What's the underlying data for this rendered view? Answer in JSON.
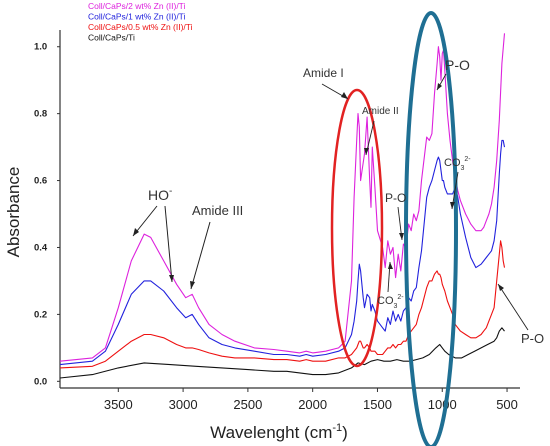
{
  "chart_data": {
    "type": "line",
    "xlabel": "Wavelenght (cm",
    "xlabel_sup": "-1",
    "xlabel_close": ")",
    "ylabel": "Absorbance",
    "xlim": [
      3950,
      400
    ],
    "ylim": [
      -0.02,
      1.05
    ],
    "x_reversed": true,
    "grid": false,
    "x_ticks": [
      3500,
      3000,
      2500,
      2000,
      1500,
      1000,
      500
    ],
    "y_ticks": [
      "0.0",
      "0.2",
      "0.4",
      "0.6",
      "0.8",
      "1.0"
    ],
    "legend_position": "top-left",
    "series": [
      {
        "name": "Coll/CaPs/2 wt% Zn (II)/Ti",
        "color": "#dd22dd",
        "x": [
          3950,
          3700,
          3600,
          3500,
          3400,
          3300,
          3250,
          3150,
          3050,
          2980,
          2930,
          2880,
          2800,
          2700,
          2600,
          2450,
          2300,
          2200,
          2100,
          2050,
          2000,
          1900,
          1800,
          1750,
          1700,
          1680,
          1660,
          1650,
          1640,
          1630,
          1600,
          1580,
          1560,
          1550,
          1540,
          1520,
          1500,
          1460,
          1440,
          1420,
          1400,
          1380,
          1360,
          1340,
          1320,
          1300,
          1280,
          1260,
          1240,
          1220,
          1200,
          1180,
          1160,
          1120,
          1100,
          1080,
          1060,
          1040,
          1030,
          1020,
          1010,
          1000,
          990,
          980,
          960,
          940,
          920,
          900,
          880,
          860,
          820,
          780,
          740,
          700,
          680,
          660,
          640,
          620,
          600,
          580,
          560,
          540,
          520
        ],
        "y": [
          0.06,
          0.07,
          0.1,
          0.22,
          0.36,
          0.44,
          0.43,
          0.36,
          0.29,
          0.25,
          0.26,
          0.22,
          0.17,
          0.14,
          0.12,
          0.1,
          0.095,
          0.09,
          0.085,
          0.09,
          0.085,
          0.09,
          0.1,
          0.12,
          0.3,
          0.55,
          0.72,
          0.8,
          0.76,
          0.6,
          0.68,
          0.79,
          0.6,
          0.52,
          0.7,
          0.58,
          0.45,
          0.4,
          0.34,
          0.42,
          0.38,
          0.4,
          0.31,
          0.38,
          0.33,
          0.41,
          0.4,
          0.47,
          0.45,
          0.5,
          0.48,
          0.51,
          0.6,
          0.73,
          0.72,
          0.74,
          0.86,
          0.95,
          1.0,
          0.97,
          0.9,
          0.98,
          0.99,
          0.93,
          0.8,
          0.72,
          0.66,
          0.61,
          0.57,
          0.54,
          0.5,
          0.47,
          0.45,
          0.45,
          0.46,
          0.48,
          0.5,
          0.53,
          0.58,
          0.66,
          0.78,
          0.95,
          1.04
        ]
      },
      {
        "name": "Coll/CaPs/1 wt% Zn (II)/Ti",
        "color": "#2222dd",
        "x": [
          3950,
          3700,
          3600,
          3500,
          3400,
          3300,
          3250,
          3150,
          3050,
          2980,
          2930,
          2880,
          2800,
          2700,
          2600,
          2450,
          2300,
          2200,
          2100,
          2050,
          2000,
          1900,
          1800,
          1750,
          1700,
          1680,
          1660,
          1650,
          1640,
          1630,
          1610,
          1600,
          1580,
          1560,
          1550,
          1540,
          1520,
          1500,
          1460,
          1440,
          1420,
          1400,
          1380,
          1360,
          1340,
          1320,
          1300,
          1280,
          1260,
          1240,
          1220,
          1200,
          1180,
          1160,
          1120,
          1100,
          1080,
          1060,
          1040,
          1030,
          1020,
          1010,
          1000,
          990,
          980,
          960,
          940,
          920,
          900,
          880,
          860,
          820,
          780,
          740,
          700,
          680,
          660,
          640,
          620,
          600,
          580,
          570,
          560,
          550,
          540,
          530,
          520
        ],
        "y": [
          0.05,
          0.06,
          0.09,
          0.17,
          0.26,
          0.3,
          0.3,
          0.27,
          0.22,
          0.19,
          0.2,
          0.17,
          0.13,
          0.11,
          0.1,
          0.09,
          0.08,
          0.08,
          0.075,
          0.08,
          0.075,
          0.08,
          0.09,
          0.1,
          0.14,
          0.18,
          0.24,
          0.3,
          0.35,
          0.33,
          0.25,
          0.22,
          0.26,
          0.25,
          0.21,
          0.23,
          0.21,
          0.18,
          0.16,
          0.15,
          0.19,
          0.17,
          0.21,
          0.18,
          0.2,
          0.18,
          0.21,
          0.22,
          0.25,
          0.24,
          0.27,
          0.28,
          0.34,
          0.39,
          0.55,
          0.58,
          0.6,
          0.63,
          0.66,
          0.67,
          0.66,
          0.63,
          0.6,
          0.6,
          0.58,
          0.56,
          0.56,
          0.56,
          0.58,
          0.55,
          0.5,
          0.43,
          0.37,
          0.34,
          0.35,
          0.36,
          0.37,
          0.38,
          0.39,
          0.42,
          0.48,
          0.55,
          0.62,
          0.68,
          0.72,
          0.72,
          0.7
        ]
      },
      {
        "name": "Coll/CaPs/0.5 wt% Zn (II)/Ti",
        "color": "#ee1111",
        "x": [
          3950,
          3700,
          3600,
          3500,
          3400,
          3300,
          3250,
          3150,
          3050,
          2980,
          2930,
          2880,
          2800,
          2700,
          2600,
          2450,
          2300,
          2200,
          2100,
          2050,
          2000,
          1900,
          1800,
          1750,
          1700,
          1680,
          1660,
          1650,
          1640,
          1630,
          1610,
          1600,
          1580,
          1560,
          1550,
          1540,
          1520,
          1500,
          1460,
          1440,
          1420,
          1400,
          1380,
          1360,
          1340,
          1320,
          1300,
          1280,
          1260,
          1240,
          1220,
          1200,
          1180,
          1160,
          1120,
          1100,
          1080,
          1060,
          1040,
          1030,
          1020,
          1010,
          1000,
          990,
          980,
          960,
          940,
          920,
          900,
          880,
          860,
          820,
          780,
          740,
          700,
          680,
          660,
          640,
          620,
          600,
          580,
          570,
          560,
          550,
          540,
          530,
          520
        ],
        "y": [
          0.04,
          0.045,
          0.06,
          0.09,
          0.12,
          0.14,
          0.14,
          0.13,
          0.11,
          0.1,
          0.1,
          0.095,
          0.085,
          0.075,
          0.07,
          0.07,
          0.065,
          0.065,
          0.06,
          0.065,
          0.06,
          0.06,
          0.07,
          0.07,
          0.08,
          0.09,
          0.1,
          0.11,
          0.12,
          0.12,
          0.1,
          0.1,
          0.11,
          0.1,
          0.09,
          0.09,
          0.09,
          0.08,
          0.08,
          0.09,
          0.1,
          0.1,
          0.11,
          0.1,
          0.11,
          0.11,
          0.12,
          0.12,
          0.14,
          0.15,
          0.16,
          0.17,
          0.2,
          0.22,
          0.28,
          0.3,
          0.3,
          0.32,
          0.33,
          0.32,
          0.32,
          0.31,
          0.29,
          0.28,
          0.27,
          0.24,
          0.22,
          0.2,
          0.17,
          0.16,
          0.15,
          0.14,
          0.13,
          0.13,
          0.14,
          0.15,
          0.16,
          0.18,
          0.2,
          0.22,
          0.3,
          0.34,
          0.38,
          0.42,
          0.4,
          0.36,
          0.34
        ]
      },
      {
        "name": "Coll/CaPs/Ti",
        "color": "#111111",
        "x": [
          3950,
          3700,
          3500,
          3300,
          3100,
          2900,
          2700,
          2500,
          2300,
          2200,
          2100,
          2000,
          1900,
          1800,
          1700,
          1650,
          1600,
          1550,
          1500,
          1450,
          1400,
          1350,
          1300,
          1250,
          1200,
          1150,
          1100,
          1050,
          1020,
          1000,
          980,
          950,
          900,
          850,
          800,
          750,
          700,
          650,
          600,
          580,
          560,
          540,
          520
        ],
        "y": [
          0.01,
          0.02,
          0.04,
          0.055,
          0.05,
          0.045,
          0.04,
          0.035,
          0.03,
          0.03,
          0.025,
          0.02,
          0.02,
          0.025,
          0.04,
          0.055,
          0.05,
          0.06,
          0.065,
          0.06,
          0.06,
          0.065,
          0.06,
          0.06,
          0.065,
          0.07,
          0.08,
          0.1,
          0.11,
          0.1,
          0.09,
          0.08,
          0.07,
          0.07,
          0.08,
          0.09,
          0.1,
          0.11,
          0.12,
          0.13,
          0.15,
          0.16,
          0.15
        ]
      }
    ],
    "annotations": {
      "amide_i": "Amide I",
      "amide_ii": "Amide II",
      "ho": "HO",
      "ho_sup": "-",
      "amide_iii": "Amide III",
      "po_center": "P-O",
      "po_top": "P-O",
      "po_right": "P-O",
      "co3_mid_base": "CO",
      "co3_mid_sub": "3",
      "co3_mid_sup": "2-",
      "co3_right_base": "CO",
      "co3_right_sub": "3",
      "co3_right_sup": "2-"
    },
    "highlights": {
      "red_ellipse_color": "#e22222",
      "blue_ellipse_color": "#1f6f93"
    }
  }
}
